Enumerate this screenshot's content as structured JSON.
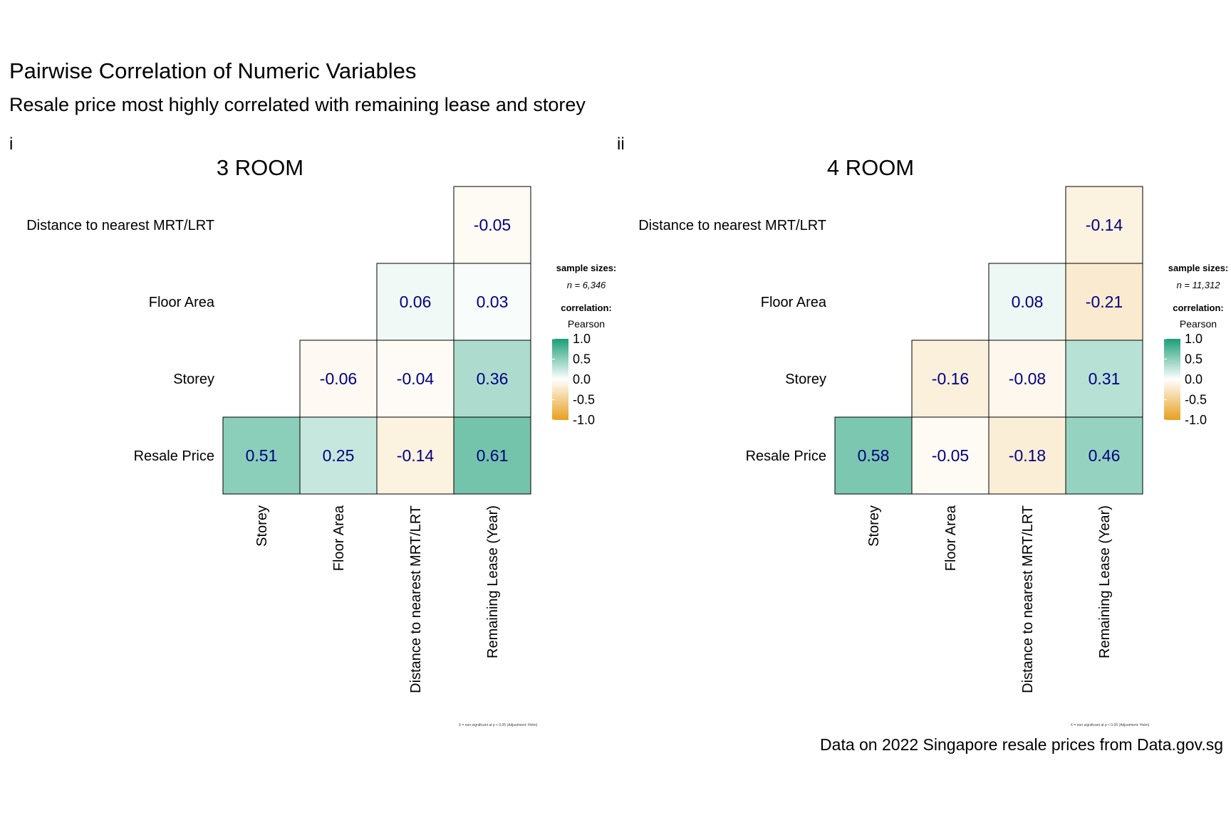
{
  "title": "Pairwise Correlation of Numeric Variables",
  "subtitle": "Resale price most highly correlated with remaining lease and storey",
  "caption": "Data on 2022 Singapore resale prices from Data.gov.sg",
  "colors": {
    "positive": "#1b9e77",
    "neutral": "#ffffff",
    "negative": "#e6a01e",
    "value_text": "#000080",
    "cell_border": "#000000"
  },
  "chart_data": [
    {
      "type": "heatmap",
      "tag": "i",
      "title": "3 ROOM",
      "rows": [
        "Distance to nearest MRT/LRT",
        "Floor Area",
        "Storey",
        "Resale Price"
      ],
      "columns": [
        "Storey",
        "Floor Area",
        "Distance to nearest MRT/LRT",
        "Remaining Lease (Year)"
      ],
      "values": [
        [
          null,
          null,
          null,
          -0.05
        ],
        [
          null,
          null,
          0.06,
          0.03
        ],
        [
          null,
          -0.06,
          -0.04,
          0.36
        ],
        [
          0.51,
          0.25,
          -0.14,
          0.61
        ]
      ],
      "legend": {
        "sample_title": "sample sizes:",
        "sample_text": "n = 6,346",
        "corr_title": "correlation:",
        "corr_method": "Pearson",
        "ticks": [
          "1.0",
          "0.5",
          "0.0",
          "-0.5",
          "-1.0"
        ],
        "range": [
          -1,
          1
        ]
      },
      "footnote": "X = non-significant at p < 0.05 (Adjustment: Holm)"
    },
    {
      "type": "heatmap",
      "tag": "ii",
      "title": "4 ROOM",
      "rows": [
        "Distance to nearest MRT/LRT",
        "Floor Area",
        "Storey",
        "Resale Price"
      ],
      "columns": [
        "Storey",
        "Floor Area",
        "Distance to nearest MRT/LRT",
        "Remaining Lease (Year)"
      ],
      "values": [
        [
          null,
          null,
          null,
          -0.14
        ],
        [
          null,
          null,
          0.08,
          -0.21
        ],
        [
          null,
          -0.16,
          -0.08,
          0.31
        ],
        [
          0.58,
          -0.05,
          -0.18,
          0.46
        ]
      ],
      "legend": {
        "sample_title": "sample sizes:",
        "sample_text": "n = 11,312",
        "corr_title": "correlation:",
        "corr_method": "Pearson",
        "ticks": [
          "1.0",
          "0.5",
          "0.0",
          "-0.5",
          "-1.0"
        ],
        "range": [
          -1,
          1
        ]
      },
      "footnote": "X = non-significant at p < 0.05 (Adjustment: Holm)"
    }
  ]
}
